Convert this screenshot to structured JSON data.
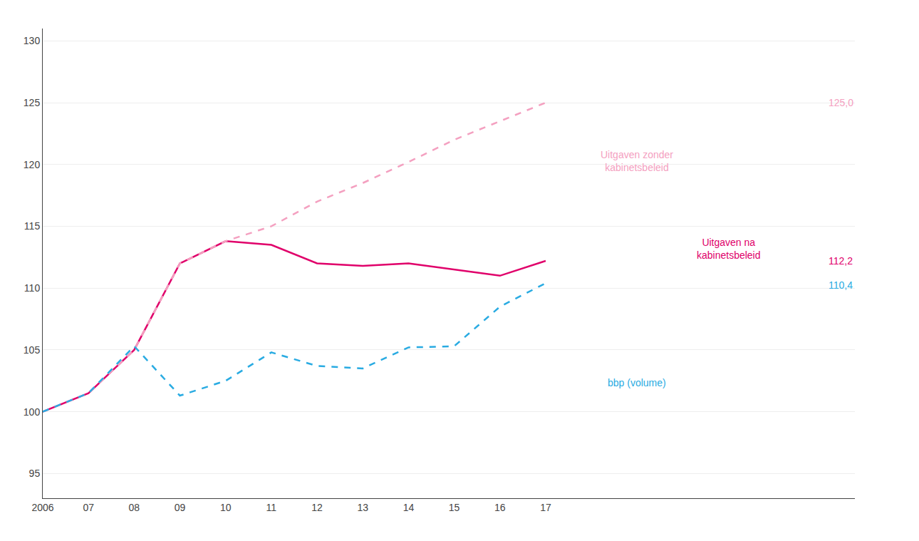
{
  "chart_data": {
    "type": "line",
    "categories": [
      "2006",
      "07",
      "08",
      "09",
      "10",
      "11",
      "12",
      "13",
      "14",
      "15",
      "16",
      "17"
    ],
    "series": [
      {
        "name": "Uitgaven na\nkabinetsbeleid",
        "color": "#e0006a",
        "line_style": "solid",
        "values": [
          100.0,
          101.5,
          105.0,
          112.0,
          113.8,
          113.5,
          112.0,
          111.8,
          112.0,
          111.5,
          111.0,
          112.2
        ],
        "value_labels": [
          null,
          null,
          null,
          null,
          null,
          null,
          null,
          null,
          null,
          null,
          null,
          "112,2"
        ]
      },
      {
        "name": "Uitgaven zonder\nkabinetsbeleid",
        "color": "#f4a0c0",
        "line_style": "dashed",
        "values": [
          100.0,
          101.5,
          105.0,
          112.0,
          113.8,
          115.0,
          117.0,
          118.5,
          120.2,
          122.0,
          123.5,
          125.0
        ],
        "value_labels": [
          null,
          null,
          null,
          null,
          null,
          null,
          null,
          null,
          null,
          null,
          null,
          "125,0"
        ]
      },
      {
        "name": "bbp (volume)",
        "color": "#29abe2",
        "line_style": "dashed",
        "values": [
          100.0,
          101.5,
          105.3,
          101.3,
          102.5,
          104.8,
          103.7,
          103.5,
          105.2,
          105.3,
          108.5,
          110.4
        ],
        "value_labels": [
          null,
          null,
          null,
          null,
          null,
          null,
          null,
          null,
          null,
          null,
          null,
          "110,4"
        ]
      }
    ],
    "ylim": [
      93,
      131
    ],
    "yticks": [
      95,
      100,
      105,
      110,
      115,
      120,
      125,
      130
    ],
    "grid": true
  }
}
